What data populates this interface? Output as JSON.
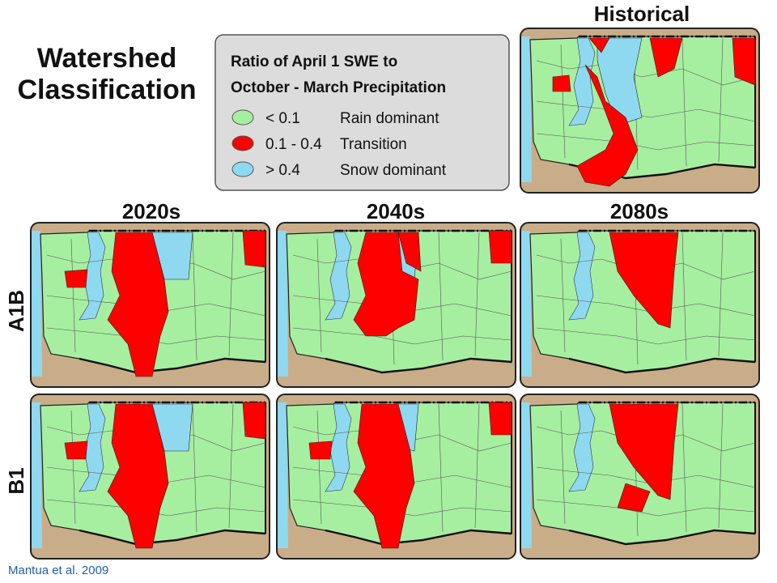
{
  "title": "Watershed Classification",
  "legend": {
    "title_lines": [
      "Ratio of April 1 SWE to",
      "October - March Precipitation"
    ],
    "items": [
      {
        "range": "< 0.1",
        "label": "Rain dominant"
      },
      {
        "range": "0.1 - 0.4",
        "label": "Transition"
      },
      {
        "range": "> 0.4",
        "label": "Snow dominant"
      }
    ]
  },
  "historical": "Historical",
  "columns": [
    "2020s",
    "2040s",
    "2080s"
  ],
  "rows": [
    "A1B",
    "B1"
  ],
  "citation": "Mantua et al. 2009"
}
